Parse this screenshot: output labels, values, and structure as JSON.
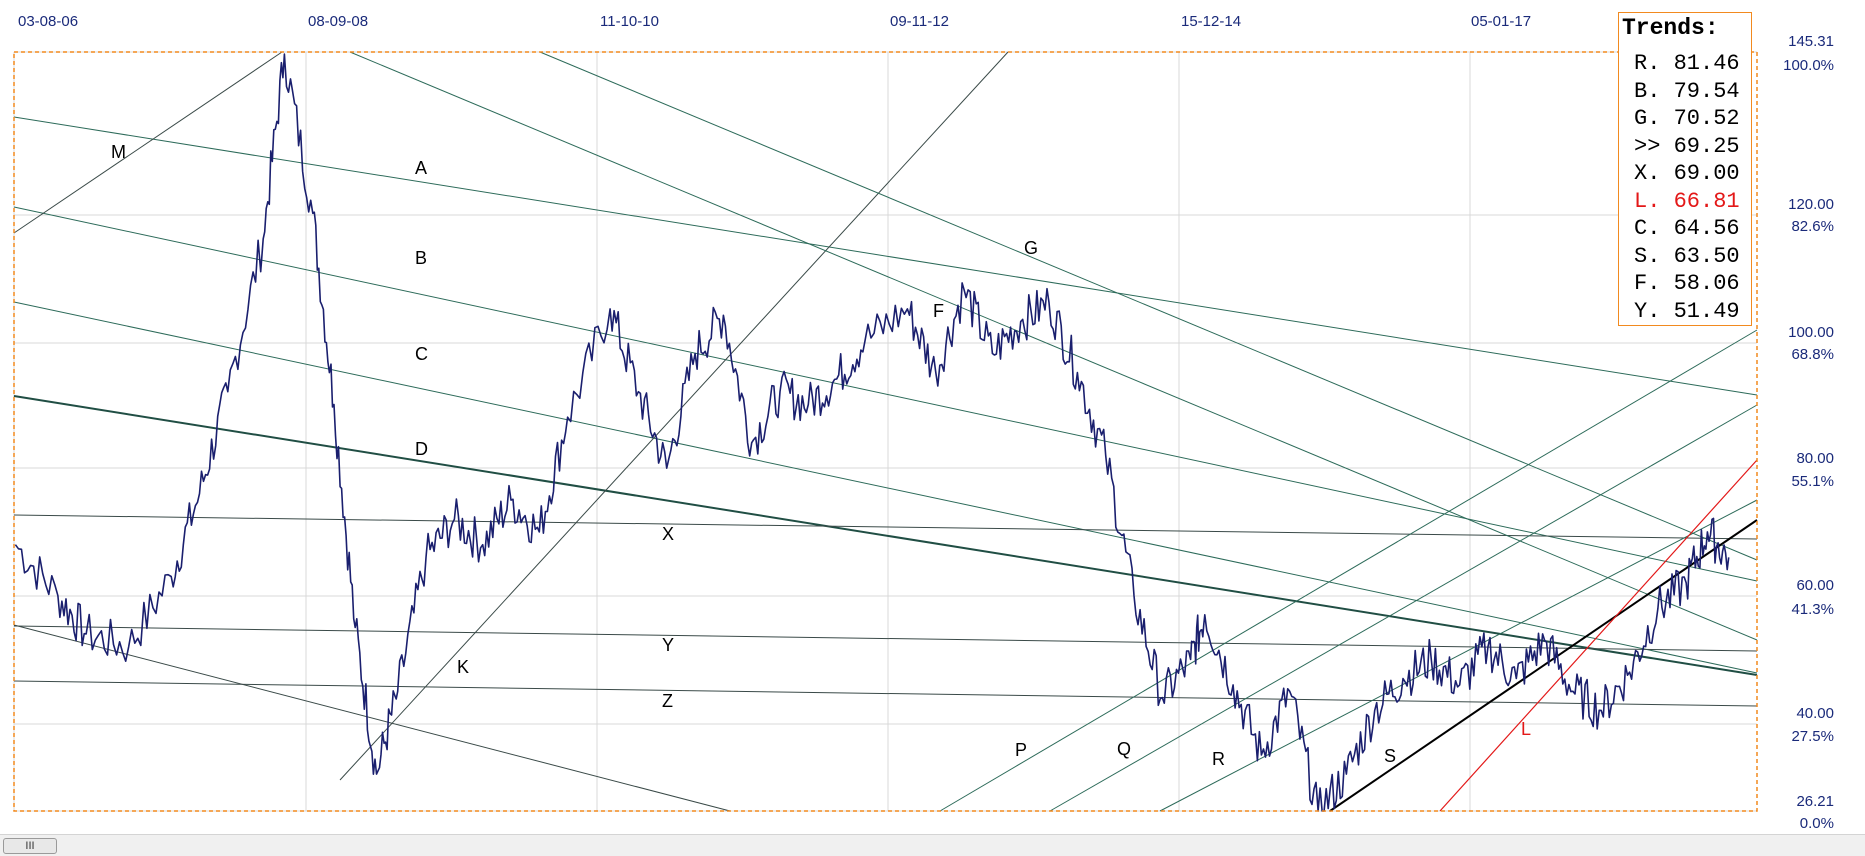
{
  "chart_data": {
    "type": "line",
    "x_tick_labels": [
      "03-08-06",
      "08-09-08",
      "11-10-10",
      "09-11-12",
      "15-12-14",
      "05-01-17"
    ],
    "price_axis": {
      "labels": [
        "145.31",
        "120.00",
        "100.00",
        "80.00",
        "60.00",
        "40.00",
        "26.21"
      ],
      "range": [
        26.21,
        145.31
      ]
    },
    "percent_axis": {
      "labels": [
        "100.0%",
        "82.6%",
        "68.8%",
        "55.1%",
        "41.3%",
        "27.5%",
        "0.0%"
      ]
    },
    "trend_labels": [
      {
        "text": "M",
        "color": "#000000"
      },
      {
        "text": "A",
        "color": "#000000"
      },
      {
        "text": "B",
        "color": "#000000"
      },
      {
        "text": "C",
        "color": "#000000"
      },
      {
        "text": "D",
        "color": "#000000"
      },
      {
        "text": "X",
        "color": "#000000"
      },
      {
        "text": "Y",
        "color": "#000000"
      },
      {
        "text": "Z",
        "color": "#000000"
      },
      {
        "text": "K",
        "color": "#000000"
      },
      {
        "text": "G",
        "color": "#000000"
      },
      {
        "text": "F",
        "color": "#000000"
      },
      {
        "text": "P",
        "color": "#000000"
      },
      {
        "text": "Q",
        "color": "#000000"
      },
      {
        "text": "R",
        "color": "#000000"
      },
      {
        "text": "S",
        "color": "#000000"
      },
      {
        "text": "L",
        "color": "#e31818"
      }
    ],
    "price_series": {
      "color": "#1a1f6e",
      "x": [
        2006.6,
        2006.9,
        2007.1,
        2007.4,
        2007.7,
        2007.9,
        2008.1,
        2008.35,
        2008.5,
        2008.7,
        2008.85,
        2009.0,
        2009.15,
        2009.3,
        2009.5,
        2009.7,
        2009.9,
        2010.1,
        2010.3,
        2010.5,
        2010.8,
        2011.0,
        2011.2,
        2011.4,
        2011.6,
        2011.8,
        2012.0,
        2012.2,
        2012.4,
        2012.6,
        2012.9,
        2013.1,
        2013.3,
        2013.5,
        2013.7,
        2013.9,
        2014.1,
        2014.3,
        2014.5,
        2014.7,
        2014.9,
        2015.0,
        2015.2,
        2015.4,
        2015.6,
        2015.8,
        2016.0,
        2016.2,
        2016.4,
        2016.6,
        2016.8,
        2017.0,
        2017.2,
        2017.4,
        2017.6,
        2017.8,
        2018.0,
        2018.2,
        2018.4,
        2018.55,
        2018.7
      ],
      "y": [
        68,
        60,
        54,
        52,
        63,
        76,
        92,
        116,
        145,
        120,
        90,
        55,
        32,
        45,
        66,
        72,
        68,
        75,
        70,
        88,
        105,
        92,
        80,
        98,
        104,
        84,
        92,
        90,
        94,
        100,
        105,
        95,
        108,
        98,
        103,
        106,
        95,
        82,
        60,
        44,
        50,
        57,
        46,
        35,
        45,
        26,
        32,
        42,
        47,
        50,
        46,
        52,
        47,
        53,
        45,
        42,
        48,
        58,
        62,
        70,
        66
      ]
    },
    "legend": {
      "title": "Trends:",
      "items": [
        {
          "text": "R. 81.46",
          "color": "#000000"
        },
        {
          "text": "B. 79.54",
          "color": "#000000"
        },
        {
          "text": "G. 70.52",
          "color": "#000000"
        },
        {
          "text": ">> 69.25",
          "color": "#000000"
        },
        {
          "text": "X. 69.00",
          "color": "#000000"
        },
        {
          "text": "L. 66.81",
          "color": "#e31818"
        },
        {
          "text": "C. 64.56",
          "color": "#000000"
        },
        {
          "text": "S. 63.50",
          "color": "#000000"
        },
        {
          "text": "F. 58.06",
          "color": "#000000"
        },
        {
          "text": "Y. 51.49",
          "color": "#000000"
        }
      ],
      "placement": "top-right"
    },
    "grid": true,
    "colors": {
      "frame": "#f28a1f",
      "axis_text": "#1a2a7a",
      "trend_lines": "#2d6b5a",
      "support_line": "#000000",
      "red_line": "#e31818"
    }
  },
  "scrollbar": {
    "thumb_label": "III"
  }
}
